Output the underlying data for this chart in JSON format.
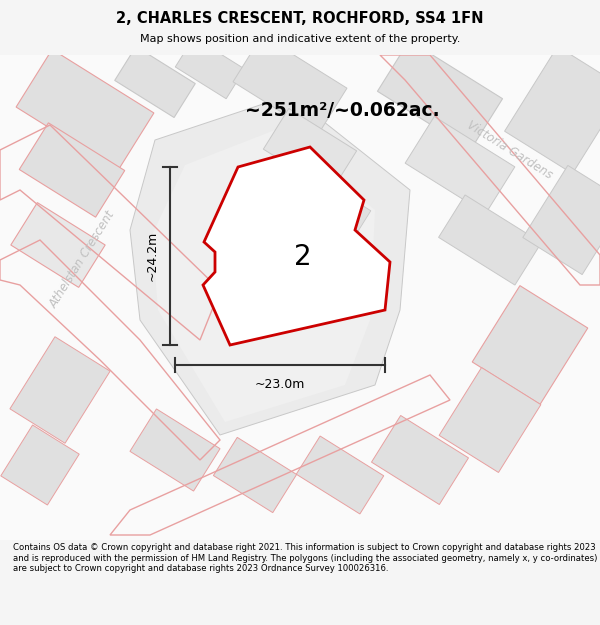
{
  "title_line1": "2, CHARLES CRESCENT, ROCHFORD, SS4 1FN",
  "title_line2": "Map shows position and indicative extent of the property.",
  "area_text": "~251m²/~0.062ac.",
  "label_height": "~24.2m",
  "label_width": "~23.0m",
  "plot_number": "2",
  "street_label1": "Athelstan Crescent",
  "street_label2": "Victoria Gardens",
  "footer_text": "Contains OS data © Crown copyright and database right 2021. This information is subject to Crown copyright and database rights 2023 and is reproduced with the permission of HM Land Registry. The polygons (including the associated geometry, namely x, y co-ordinates) are subject to Crown copyright and database rights 2023 Ordnance Survey 100026316.",
  "bg_color": "#f5f5f5",
  "map_bg": "#ffffff",
  "plot_fill": "#ffffff",
  "plot_edge": "#cc0000",
  "bldg_fill": "#e0e0e0",
  "bldg_edge_gray": "#c8c8c8",
  "bldg_edge_pink": "#e8a0a0",
  "road_outline": "#f0b0b0",
  "street_text_color": "#c0c0c0",
  "dim_color": "#333333"
}
